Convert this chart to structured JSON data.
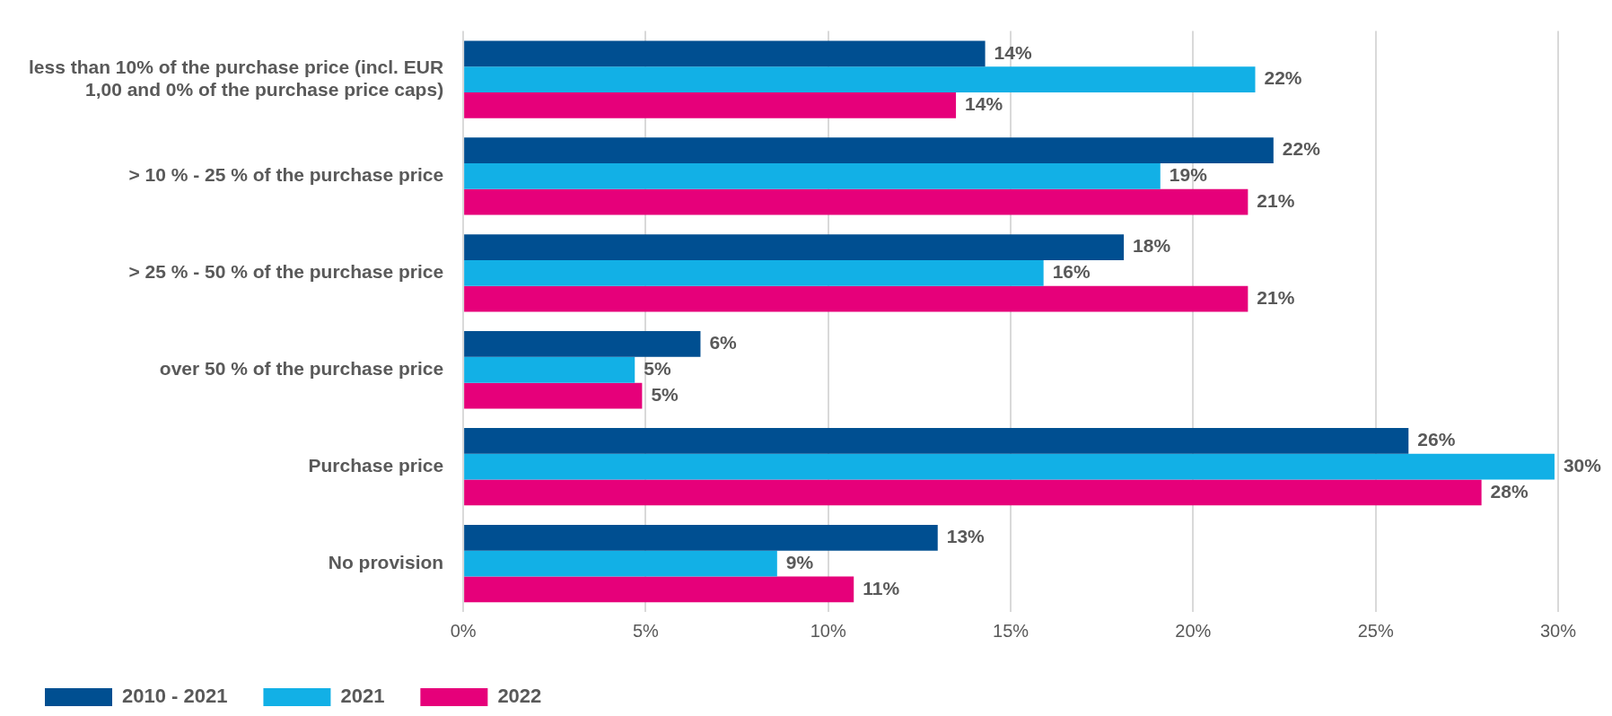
{
  "chart_data": {
    "type": "bar",
    "orientation": "horizontal",
    "categories": [
      "less than 10% of the purchase price (incl. EUR 1,00 and 0% of the purchase price caps)",
      "> 10 % - 25 % of the purchase price",
      "> 25 % - 50 % of the purchase price",
      "over 50 % of the purchase price",
      "Purchase price",
      "No provision"
    ],
    "series": [
      {
        "name": "2010 - 2021",
        "color": "#004f91",
        "values": [
          14.3,
          22.2,
          18.1,
          6.5,
          25.9,
          13.0
        ],
        "value_labels": [
          "14%",
          "22%",
          "18%",
          "6%",
          "26%",
          "13%"
        ]
      },
      {
        "name": "2021",
        "color": "#12b0e6",
        "values": [
          21.7,
          19.1,
          15.9,
          4.7,
          29.9,
          8.6
        ],
        "value_labels": [
          "22%",
          "19%",
          "16%",
          "5%",
          "30%",
          "9%"
        ]
      },
      {
        "name": "2022",
        "color": "#e6007a",
        "values": [
          13.5,
          21.5,
          21.5,
          4.9,
          27.9,
          10.7
        ],
        "value_labels": [
          "14%",
          "21%",
          "21%",
          "5%",
          "28%",
          "11%"
        ]
      }
    ],
    "xlim": [
      0,
      30
    ],
    "xticks": [
      {
        "value": 0,
        "label": "0%"
      },
      {
        "value": 5,
        "label": "5%"
      },
      {
        "value": 10,
        "label": "10%"
      },
      {
        "value": 15,
        "label": "15%"
      },
      {
        "value": 20,
        "label": "20%"
      },
      {
        "value": 25,
        "label": "25%"
      },
      {
        "value": 30,
        "label": "30%"
      }
    ],
    "grid": "x",
    "legend": "bottom left"
  }
}
